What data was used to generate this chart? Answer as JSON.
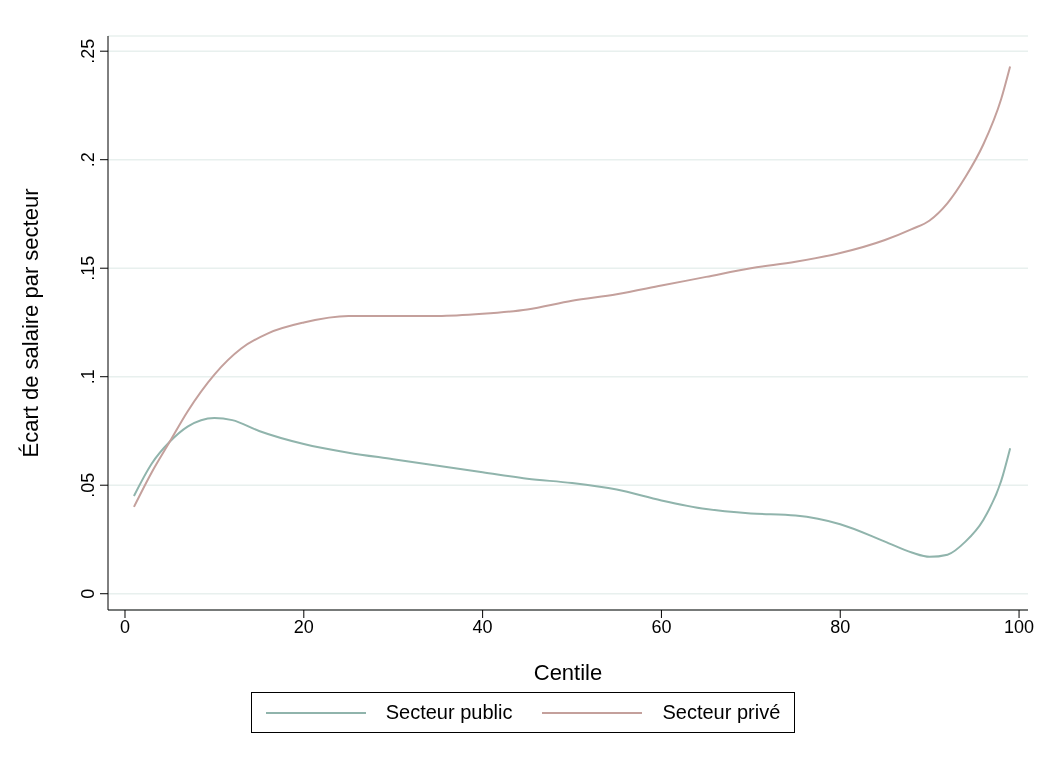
{
  "chart_data": {
    "type": "line",
    "xlabel": "Centile",
    "ylabel": "Écart de salaire par secteur",
    "xlim": [
      -1.9,
      101
    ],
    "xticks": [
      0,
      20,
      40,
      60,
      80,
      100
    ],
    "ylim": [
      -0.0075,
      0.257
    ],
    "yticks": [
      {
        "value": 0,
        "label": "0"
      },
      {
        "value": 0.05,
        "label": ".05"
      },
      {
        "value": 0.1,
        "label": ".1"
      },
      {
        "value": 0.15,
        "label": ".15"
      },
      {
        "value": 0.2,
        "label": ".2"
      },
      {
        "value": 0.25,
        "label": ".25"
      }
    ],
    "grid": "y",
    "legend": "bottom",
    "marker": "none",
    "line_style": "solid",
    "series": [
      {
        "name": "Secteur public",
        "color": "#90b4ac",
        "x": [
          1,
          3,
          5,
          7,
          10,
          12,
          15,
          20,
          25,
          30,
          35,
          40,
          45,
          50,
          55,
          60,
          65,
          70,
          75,
          80,
          85,
          88,
          90,
          92,
          94,
          96,
          98,
          99
        ],
        "values": [
          0.045,
          0.06,
          0.07,
          0.077,
          0.081,
          0.08,
          0.075,
          0.069,
          0.065,
          0.062,
          0.059,
          0.056,
          0.053,
          0.051,
          0.048,
          0.043,
          0.039,
          0.037,
          0.036,
          0.032,
          0.024,
          0.019,
          0.017,
          0.018,
          0.024,
          0.034,
          0.052,
          0.067
        ]
      },
      {
        "name": "Secteur privé",
        "color": "#c4a09c",
        "x": [
          1,
          3,
          5,
          7,
          10,
          13,
          16,
          20,
          25,
          30,
          35,
          40,
          45,
          50,
          55,
          60,
          65,
          70,
          75,
          80,
          85,
          88,
          90,
          92,
          94,
          96,
          98,
          99
        ],
        "values": [
          0.04,
          0.056,
          0.07,
          0.084,
          0.101,
          0.113,
          0.12,
          0.125,
          0.128,
          0.128,
          0.128,
          0.129,
          0.131,
          0.135,
          0.138,
          0.142,
          0.146,
          0.15,
          0.153,
          0.157,
          0.163,
          0.168,
          0.172,
          0.18,
          0.192,
          0.207,
          0.228,
          0.243
        ]
      }
    ]
  }
}
